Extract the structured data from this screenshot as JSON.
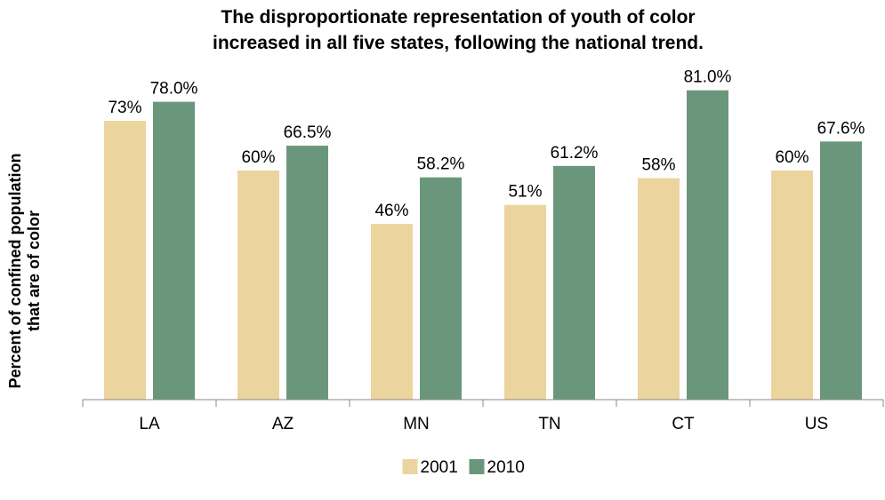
{
  "chart_data": {
    "type": "bar",
    "title_lines": [
      "The disproportionate representation of youth of color",
      "increased in all five states, following the national trend."
    ],
    "ylabel_lines": [
      "Percent of confined population",
      "that are of color"
    ],
    "xlabel": "",
    "categories": [
      "LA",
      "AZ",
      "MN",
      "TN",
      "CT",
      "US"
    ],
    "series": [
      {
        "name": "2001",
        "values": [
          73,
          60,
          46,
          51,
          58,
          60
        ],
        "labels": [
          "73%",
          "60%",
          "46%",
          "51%",
          "58%",
          "60%"
        ],
        "color": "#ecd49e"
      },
      {
        "name": "2010",
        "values": [
          78.0,
          66.5,
          58.2,
          61.2,
          81.0,
          67.6
        ],
        "labels": [
          "78.0%",
          "66.5%",
          "58.2%",
          "61.2%",
          "81.0%",
          "67.6%"
        ],
        "color": "#6a977c"
      }
    ],
    "ylim": [
      0,
      100
    ],
    "grid": false,
    "legend_position": "bottom"
  }
}
